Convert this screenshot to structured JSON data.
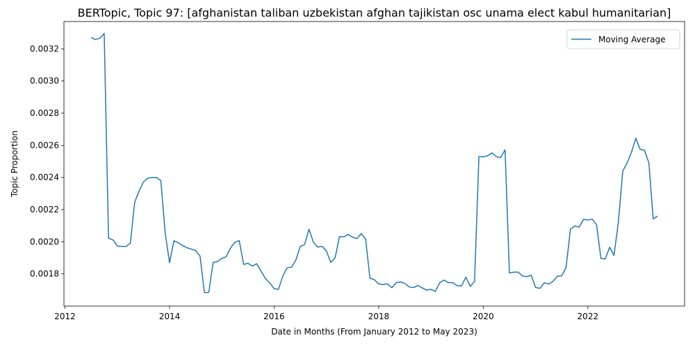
{
  "chart_data": {
    "type": "line",
    "title": "BERTopic, Topic 97: [afghanistan taliban uzbekistan afghan tajikistan osc unama elect kabul humanitarian]",
    "xlabel": "Date in Months (From January 2012 to May 2023)",
    "ylabel": "Topic Proportion",
    "xlim": [
      2011.98,
      2023.85
    ],
    "ylim": [
      0.0016,
      0.00337
    ],
    "xticks": [
      2012,
      2014,
      2016,
      2018,
      2020,
      2022
    ],
    "yticks": [
      0.0018,
      0.002,
      0.0022,
      0.0024,
      0.0026,
      0.0028,
      0.003,
      0.0032
    ],
    "ytick_labels": [
      "0.0018",
      "0.0020",
      "0.0022",
      "0.0024",
      "0.0026",
      "0.0028",
      "0.0030",
      "0.0032"
    ],
    "grid": false,
    "legend": {
      "position": "upper-right",
      "entries": [
        "Moving Average"
      ]
    },
    "series": [
      {
        "name": "Moving Average",
        "color": "#1f77b4",
        "x": [
          2012.5,
          2012.583,
          2012.667,
          2012.75,
          2012.833,
          2012.917,
          2013.0,
          2013.083,
          2013.167,
          2013.25,
          2013.333,
          2013.417,
          2013.5,
          2013.583,
          2013.667,
          2013.75,
          2013.833,
          2013.917,
          2014.0,
          2014.083,
          2014.167,
          2014.25,
          2014.333,
          2014.417,
          2014.5,
          2014.583,
          2014.667,
          2014.75,
          2014.833,
          2014.917,
          2015.0,
          2015.083,
          2015.167,
          2015.25,
          2015.333,
          2015.417,
          2015.5,
          2015.583,
          2015.667,
          2015.75,
          2015.833,
          2015.917,
          2016.0,
          2016.083,
          2016.167,
          2016.25,
          2016.333,
          2016.417,
          2016.5,
          2016.583,
          2016.667,
          2016.75,
          2016.833,
          2016.917,
          2017.0,
          2017.083,
          2017.167,
          2017.25,
          2017.333,
          2017.417,
          2017.5,
          2017.583,
          2017.667,
          2017.75,
          2017.833,
          2017.917,
          2018.0,
          2018.083,
          2018.167,
          2018.25,
          2018.333,
          2018.417,
          2018.5,
          2018.583,
          2018.667,
          2018.75,
          2018.833,
          2018.917,
          2019.0,
          2019.083,
          2019.167,
          2019.25,
          2019.333,
          2019.417,
          2019.5,
          2019.583,
          2019.667,
          2019.75,
          2019.833,
          2019.917,
          2020.0,
          2020.083,
          2020.167,
          2020.25,
          2020.333,
          2020.417,
          2020.5,
          2020.583,
          2020.667,
          2020.75,
          2020.833,
          2020.917,
          2021.0,
          2021.083,
          2021.167,
          2021.25,
          2021.333,
          2021.417,
          2021.5,
          2021.583,
          2021.667,
          2021.75,
          2021.833,
          2021.917,
          2022.0,
          2022.083,
          2022.167,
          2022.25,
          2022.333,
          2022.417,
          2022.5,
          2022.583,
          2022.667,
          2022.75,
          2022.833,
          2022.917,
          2023.0,
          2023.083,
          2023.167,
          2023.25,
          2023.333
        ],
        "values": [
          0.00327,
          0.003258,
          0.003266,
          0.003296,
          0.002022,
          0.002012,
          0.001974,
          0.00197,
          0.00197,
          0.001991,
          0.002245,
          0.002315,
          0.002372,
          0.002395,
          0.0024,
          0.002399,
          0.002381,
          0.002054,
          0.001869,
          0.002006,
          0.001994,
          0.001977,
          0.001963,
          0.001954,
          0.001945,
          0.001911,
          0.001683,
          0.001685,
          0.001871,
          0.001877,
          0.001896,
          0.001907,
          0.001962,
          0.001997,
          0.002007,
          0.001859,
          0.001866,
          0.001849,
          0.001863,
          0.001817,
          0.001771,
          0.001744,
          0.001708,
          0.001704,
          0.001788,
          0.001838,
          0.001842,
          0.001887,
          0.001971,
          0.001983,
          0.002078,
          0.001998,
          0.001967,
          0.001971,
          0.001943,
          0.001871,
          0.001901,
          0.002032,
          0.00203,
          0.002046,
          0.002028,
          0.00202,
          0.002051,
          0.002016,
          0.001773,
          0.001764,
          0.001738,
          0.001734,
          0.001738,
          0.001714,
          0.001745,
          0.00175,
          0.001741,
          0.001719,
          0.001715,
          0.001728,
          0.001713,
          0.001699,
          0.001704,
          0.001691,
          0.001745,
          0.001762,
          0.001746,
          0.001745,
          0.001727,
          0.001725,
          0.00178,
          0.001722,
          0.001753,
          0.002531,
          0.002528,
          0.002535,
          0.002553,
          0.002529,
          0.002524,
          0.002572,
          0.001806,
          0.001811,
          0.001811,
          0.001787,
          0.001783,
          0.001792,
          0.001716,
          0.00171,
          0.001745,
          0.001737,
          0.001754,
          0.001785,
          0.001788,
          0.001839,
          0.002078,
          0.002098,
          0.002091,
          0.002139,
          0.002135,
          0.002141,
          0.002106,
          0.001896,
          0.001893,
          0.001966,
          0.001915,
          0.002119,
          0.002438,
          0.00249,
          0.002555,
          0.002644,
          0.002575,
          0.002569,
          0.002491,
          0.002142,
          0.00216
        ]
      }
    ]
  }
}
